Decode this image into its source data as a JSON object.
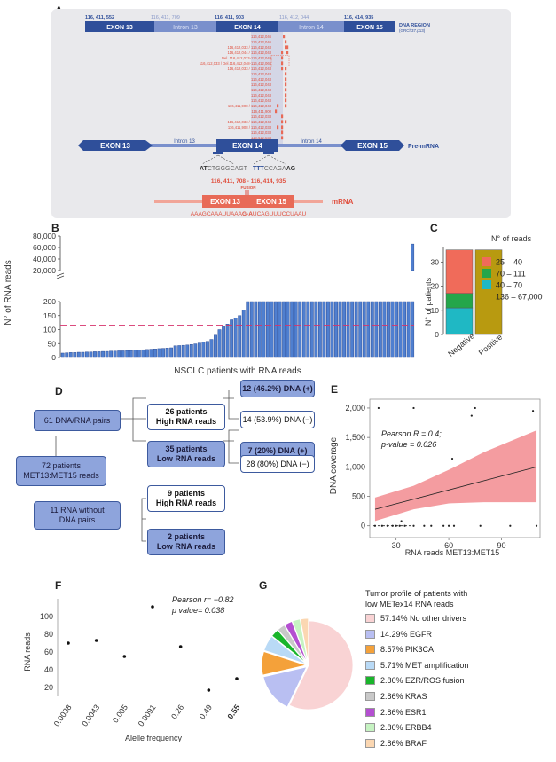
{
  "panels": {
    "A": "A",
    "B": "B",
    "C": "C",
    "D": "D",
    "E": "E",
    "F": "F",
    "G": "G"
  },
  "panel_a": {
    "coords": [
      "116, 411, 552",
      "116, 411, 709",
      "116, 411, 903",
      "116, 412, 044",
      "116, 414, 935"
    ],
    "dna_region_label": "DNA REGION",
    "dna_region_sub": "(GRCh37.p13)",
    "dna_segments": [
      "EXON 13",
      "Intron 13",
      "EXON 14",
      "Intron 14",
      "EXON 15"
    ],
    "mutation_labels": [
      "116,412,046",
      "116,412,046",
      "116,412,033 / 116,412,043",
      "116,412,044 / 116,412,043",
      "Del. 116,412,033-116,412,048",
      "116,412,033 / Del.116,412,048-116,412,065",
      "116,412,033 / 116,412,043",
      "116,412,043",
      "116,412,043",
      "116,412,043",
      "116,412,043",
      "116,412,043",
      "116,412,043",
      "116,411,908 / 116,412,043",
      "116,411,900",
      "116,412,033",
      "116,412,033 / 116,412,043",
      "116,411,908 / 116,412,033",
      "116,412,033",
      "116,412,033"
    ],
    "premrna_segments": [
      "EXON 13",
      "Intron 13",
      "EXON 14",
      "Intron 14",
      "EXON 15"
    ],
    "premrna_label": "Pre-mRNA",
    "seq_left_prefix": "AT",
    "seq_left_body": "CTGGGCAGT",
    "seq_right_prefix": "TTT",
    "seq_right_mid": "CCAGA",
    "seq_right_suffix": "AG",
    "fusion_coords": "116, 411, 708 - 116, 414, 935",
    "fusion_label": "FUSION",
    "mrna_segments": [
      "EXON 13",
      "EXON 15"
    ],
    "mrna_label": "mRNA",
    "mrna_seq_a": "AAAGCAAAUUAAA",
    "mrna_seq_b": "G-A",
    "mrna_seq_c": "UCAGUUUCCUAAU"
  },
  "chart_data": [
    {
      "type": "bar",
      "panel": "B",
      "title": "",
      "xlabel": "NSCLC patients with RNA reads",
      "ylabel": "N° of RNA reads",
      "y_ticks_lower": [
        "0",
        "50",
        "100",
        "150",
        "200"
      ],
      "y_ticks_upper": [
        "20,000",
        "40,000",
        "60,000",
        "80,000"
      ],
      "ylim_lower": [
        0,
        200
      ],
      "ylim_upper": [
        20000,
        80000
      ],
      "threshold": 115,
      "values": [
        16,
        17,
        18,
        18,
        19,
        19,
        20,
        20,
        21,
        21,
        22,
        22,
        23,
        23,
        24,
        24,
        25,
        25,
        26,
        27,
        28,
        29,
        30,
        31,
        32,
        33,
        34,
        35,
        42,
        43,
        44,
        45,
        47,
        49,
        52,
        55,
        58,
        65,
        80,
        100,
        110,
        120,
        135,
        142,
        150,
        170,
        200,
        200,
        200,
        200,
        200,
        200,
        200,
        200,
        200,
        200,
        200,
        200,
        200,
        200,
        200,
        200,
        200,
        200,
        200,
        200,
        200,
        201,
        202,
        203,
        204,
        205,
        206,
        207,
        208,
        209,
        210,
        211,
        212,
        213,
        215,
        217,
        219,
        222,
        225,
        230,
        240,
        66000
      ]
    },
    {
      "type": "bar",
      "panel": "C",
      "stacked": true,
      "categories": [
        "Negative",
        "Positive"
      ],
      "ylabel": "N° of patients",
      "y_ticks": [
        "0",
        "10",
        "20",
        "30"
      ],
      "ylim": [
        0,
        36
      ],
      "legend_title": "N° of reads",
      "series": [
        {
          "name": "40 – 70",
          "color": "#1fb8c4",
          "values": [
            11,
            0
          ]
        },
        {
          "name": "70 – 111",
          "color": "#24a64a",
          "values": [
            6,
            0
          ]
        },
        {
          "name": "25 – 40",
          "color": "#f06b5a",
          "values": [
            18,
            0
          ]
        },
        {
          "name": "136 – 67,000",
          "color": "#b89a10",
          "values": [
            0,
            35
          ]
        }
      ],
      "legend_order": [
        "25 – 40",
        "70 – 111",
        "40 – 70",
        "136 – 67,000"
      ]
    },
    {
      "type": "scatter",
      "panel": "E",
      "xlabel": "RNA reads MET13:MET15",
      "ylabel": "DNA coverage",
      "x_ticks": [
        "30",
        "60",
        "90"
      ],
      "y_ticks": [
        "0",
        "500",
        "1,000",
        "1,500",
        "2,000"
      ],
      "xlim": [
        15,
        112
      ],
      "ylim": [
        -200,
        2150
      ],
      "annotation_line1": "Pearson R = 0.4;",
      "annotation_line2": "p-value = 0.026",
      "fit": {
        "x": [
          18,
          110
        ],
        "y": [
          280,
          1000
        ]
      },
      "band_upper": [
        [
          18,
          480
        ],
        [
          40,
          680
        ],
        [
          60,
          950
        ],
        [
          80,
          1250
        ],
        [
          110,
          1620
        ]
      ],
      "band_lower": [
        [
          18,
          80
        ],
        [
          40,
          280
        ],
        [
          60,
          380
        ],
        [
          80,
          400
        ],
        [
          110,
          400
        ]
      ],
      "points": [
        [
          20,
          2000
        ],
        [
          40,
          2000
        ],
        [
          75,
          2000
        ],
        [
          108,
          1950
        ],
        [
          73,
          1870
        ],
        [
          62,
          1140
        ],
        [
          18,
          0
        ],
        [
          22,
          0
        ],
        [
          25,
          0
        ],
        [
          28,
          0
        ],
        [
          30,
          0
        ],
        [
          32,
          0
        ],
        [
          35,
          0
        ],
        [
          40,
          0
        ],
        [
          46,
          0
        ],
        [
          50,
          0
        ],
        [
          57,
          0
        ],
        [
          60,
          0
        ],
        [
          63,
          0
        ],
        [
          78,
          0
        ],
        [
          95,
          0
        ],
        [
          110,
          0
        ],
        [
          33,
          80
        ]
      ]
    },
    {
      "type": "scatter",
      "panel": "F",
      "xlabel": "Alelle frequency",
      "ylabel": "RNA reads",
      "categories": [
        "0.0038",
        "0.0043",
        "0.005",
        "0.0091",
        "0.26",
        "0.49",
        "0.55"
      ],
      "values": [
        70,
        73,
        55,
        111,
        66,
        17,
        30
      ],
      "y_ticks": [
        "20",
        "40",
        "60",
        "80",
        "100"
      ],
      "ylim": [
        10,
        120
      ],
      "annotation_line1": "Pearson r= −0.82",
      "annotation_line2": "p value= 0.038"
    },
    {
      "type": "pie",
      "panel": "G",
      "title_line1": "Tumor profile of  patients with",
      "title_line2": "low METex14 RNA reads",
      "slices": [
        {
          "label": "57.14% No other drivers",
          "value": 57.14,
          "color": "#f9d3d4"
        },
        {
          "label": "14.29% EGFR",
          "value": 14.29,
          "color": "#b9bff2"
        },
        {
          "label": "8.57% PIK3CA",
          "value": 8.57,
          "color": "#f4a13a"
        },
        {
          "label": "5.71% MET amplification",
          "value": 5.71,
          "color": "#b9daf6"
        },
        {
          "label": "2.86% EZR/ROS fusion",
          "value": 2.86,
          "color": "#19b52b"
        },
        {
          "label": "2.86% KRAS",
          "value": 2.86,
          "color": "#c9c9c9"
        },
        {
          "label": "2.86% ESR1",
          "value": 2.86,
          "color": "#b44fd1"
        },
        {
          "label": "2.86% ERBB4",
          "value": 2.86,
          "color": "#c6f3c2"
        },
        {
          "label": "2.86% BRAF",
          "value": 2.86,
          "color": "#fbd7b2"
        }
      ]
    }
  ],
  "panel_d": {
    "root": "72 patients\nMET13:MET15 reads",
    "pairs": "61 DNA/RNA pairs",
    "no_pairs": "11 RNA without\nDNA pairs",
    "high_26": "26 patients\nHigh RNA reads",
    "low_35": "35 patients\nLow RNA reads",
    "high_9": "9 patients\nHigh RNA reads",
    "low_2": "2 patients\nLow RNA reads",
    "r1": "12 (46.2%) DNA (+)",
    "r2": "14 (53.9%) DNA  (−)",
    "r3": "7 (20%) DNA (+)",
    "r4": "28 (80%) DNA  (−)"
  }
}
